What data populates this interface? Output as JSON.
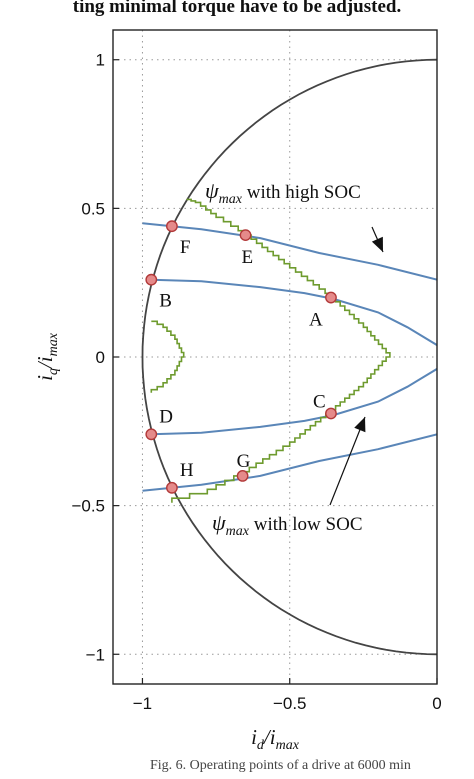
{
  "header_text": "ting minimal torque have to be adjusted.",
  "footer_text": "Fig. 6. Operating points of a drive at 6000 min",
  "chart_data": {
    "type": "line",
    "title": "",
    "xlabel": "i_d / i_max",
    "ylabel": "i_q / i_max",
    "xlim": [
      -1.1,
      0
    ],
    "ylim": [
      -1.1,
      1.1
    ],
    "xticks": [
      -1,
      -0.5,
      0
    ],
    "xtick_labels": [
      "−1",
      "−0.5",
      "0"
    ],
    "yticks": [
      1,
      0.5,
      0,
      -0.5,
      -1
    ],
    "ytick_labels": [
      "1",
      "0.5",
      "0",
      "−0.5",
      "−1"
    ],
    "grid": true,
    "colors": {
      "circle": "#444444",
      "curves": "#5a86b8",
      "voltage": "#6e9b2e",
      "marker_fill": "#e58a8a",
      "marker_edge": "#b23a3a"
    },
    "series": [
      {
        "kind": "current-limit-circle",
        "radius": 1.0
      },
      {
        "kind": "torque-curve",
        "points": [
          [
            -1.0,
            0.45
          ],
          [
            -0.8,
            0.43
          ],
          [
            -0.6,
            0.4
          ],
          [
            -0.4,
            0.35
          ],
          [
            -0.2,
            0.31
          ],
          [
            0,
            0.26
          ]
        ]
      },
      {
        "kind": "torque-curve",
        "points": [
          [
            -0.97,
            0.26
          ],
          [
            -0.8,
            0.255
          ],
          [
            -0.6,
            0.235
          ],
          [
            -0.45,
            0.215
          ],
          [
            -0.35,
            0.195
          ],
          [
            -0.2,
            0.15
          ],
          [
            -0.1,
            0.1
          ],
          [
            0,
            0.04
          ]
        ]
      },
      {
        "kind": "torque-curve",
        "points": [
          [
            -0.97,
            -0.26
          ],
          [
            -0.8,
            -0.255
          ],
          [
            -0.6,
            -0.235
          ],
          [
            -0.45,
            -0.215
          ],
          [
            -0.35,
            -0.195
          ],
          [
            -0.2,
            -0.15
          ],
          [
            -0.1,
            -0.1
          ],
          [
            0,
            -0.04
          ]
        ]
      },
      {
        "kind": "torque-curve",
        "points": [
          [
            -1.0,
            -0.45
          ],
          [
            -0.8,
            -0.43
          ],
          [
            -0.6,
            -0.4
          ],
          [
            -0.4,
            -0.35
          ],
          [
            -0.2,
            -0.31
          ],
          [
            0,
            -0.26
          ]
        ]
      },
      {
        "kind": "voltage-limit-high-soc",
        "points": [
          [
            -0.85,
            0.53
          ],
          [
            -0.82,
            0.52
          ],
          [
            -0.75,
            0.47
          ],
          [
            -0.65,
            0.41
          ],
          [
            -0.5,
            0.3
          ],
          [
            -0.36,
            0.2
          ],
          [
            -0.25,
            0.1
          ],
          [
            -0.16,
            0.0
          ],
          [
            -0.25,
            -0.1
          ],
          [
            -0.36,
            -0.19
          ],
          [
            -0.5,
            -0.3
          ],
          [
            -0.66,
            -0.4
          ],
          [
            -0.78,
            -0.46
          ],
          [
            -0.9,
            -0.49
          ]
        ]
      },
      {
        "kind": "voltage-limit-low-soc",
        "points": [
          [
            -0.97,
            0.12
          ],
          [
            -0.93,
            0.1
          ],
          [
            -0.89,
            0.06
          ],
          [
            -0.86,
            0.0
          ],
          [
            -0.89,
            -0.06
          ],
          [
            -0.93,
            -0.1
          ],
          [
            -0.97,
            -0.12
          ]
        ]
      }
    ],
    "operating_points": [
      {
        "label": "A",
        "x": -0.36,
        "y": 0.2
      },
      {
        "label": "B",
        "x": -0.97,
        "y": 0.26
      },
      {
        "label": "C",
        "x": -0.36,
        "y": -0.19
      },
      {
        "label": "D",
        "x": -0.97,
        "y": -0.26
      },
      {
        "label": "E",
        "x": -0.65,
        "y": 0.41
      },
      {
        "label": "F",
        "x": -0.9,
        "y": 0.44
      },
      {
        "label": "G",
        "x": -0.66,
        "y": -0.4
      },
      {
        "label": "H",
        "x": -0.9,
        "y": -0.44
      }
    ],
    "annotations": [
      {
        "symbol": "ψ",
        "subscript": "max",
        "text": " with high SOC"
      },
      {
        "symbol": "ψ",
        "subscript": "max",
        "text": " with low SOC"
      }
    ]
  }
}
